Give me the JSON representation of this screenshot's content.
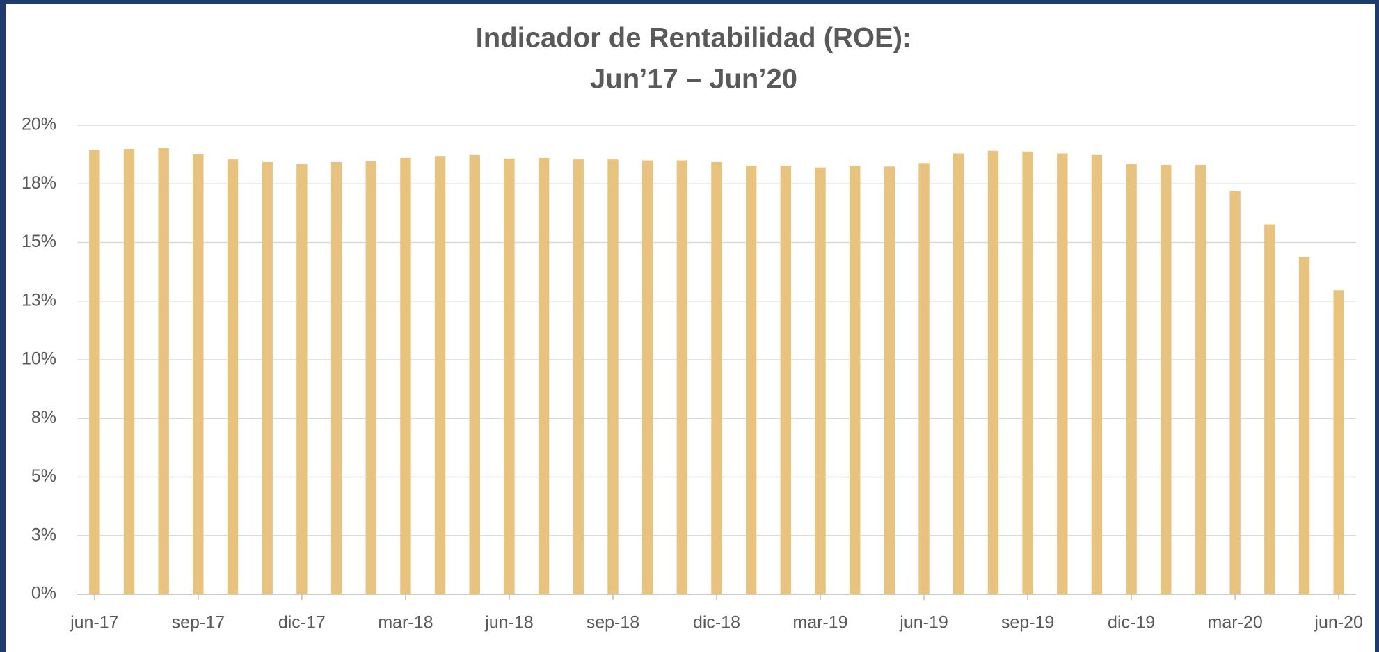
{
  "chart_data": {
    "type": "bar",
    "title": [
      "Indicador de Rentabilidad (ROE):",
      "Jun’17 – Jun’20"
    ],
    "categories": [
      "jun-17",
      null,
      null,
      "sep-17",
      null,
      null,
      "dic-17",
      null,
      null,
      "mar-18",
      null,
      null,
      "jun-18",
      null,
      null,
      "sep-18",
      null,
      null,
      "dic-18",
      null,
      null,
      "mar-19",
      null,
      null,
      "jun-19",
      null,
      null,
      "sep-19",
      null,
      null,
      "dic-19",
      null,
      null,
      "mar-20",
      null,
      null,
      "jun-20"
    ],
    "values": [
      18.95,
      18.99,
      19.03,
      18.76,
      18.54,
      18.43,
      18.35,
      18.43,
      18.46,
      18.61,
      18.69,
      18.73,
      18.58,
      18.61,
      18.54,
      18.54,
      18.5,
      18.5,
      18.43,
      18.28,
      18.28,
      18.2,
      18.28,
      18.24,
      18.39,
      18.8,
      18.91,
      18.88,
      18.8,
      18.73,
      18.35,
      18.31,
      18.31,
      17.19,
      15.77,
      14.38,
      12.96
    ],
    "color": "#e8c37f",
    "ylim": [
      0,
      20
    ],
    "yticks": [
      {
        "value": 0,
        "label": "0%"
      },
      {
        "value": 2.5,
        "label": "3%"
      },
      {
        "value": 5,
        "label": "5%"
      },
      {
        "value": 7.5,
        "label": "8%"
      },
      {
        "value": 10,
        "label": "10%"
      },
      {
        "value": 12.5,
        "label": "13%"
      },
      {
        "value": 15,
        "label": "15%"
      },
      {
        "value": 17.5,
        "label": "18%"
      },
      {
        "value": 20,
        "label": "20%"
      }
    ],
    "grid": true
  }
}
